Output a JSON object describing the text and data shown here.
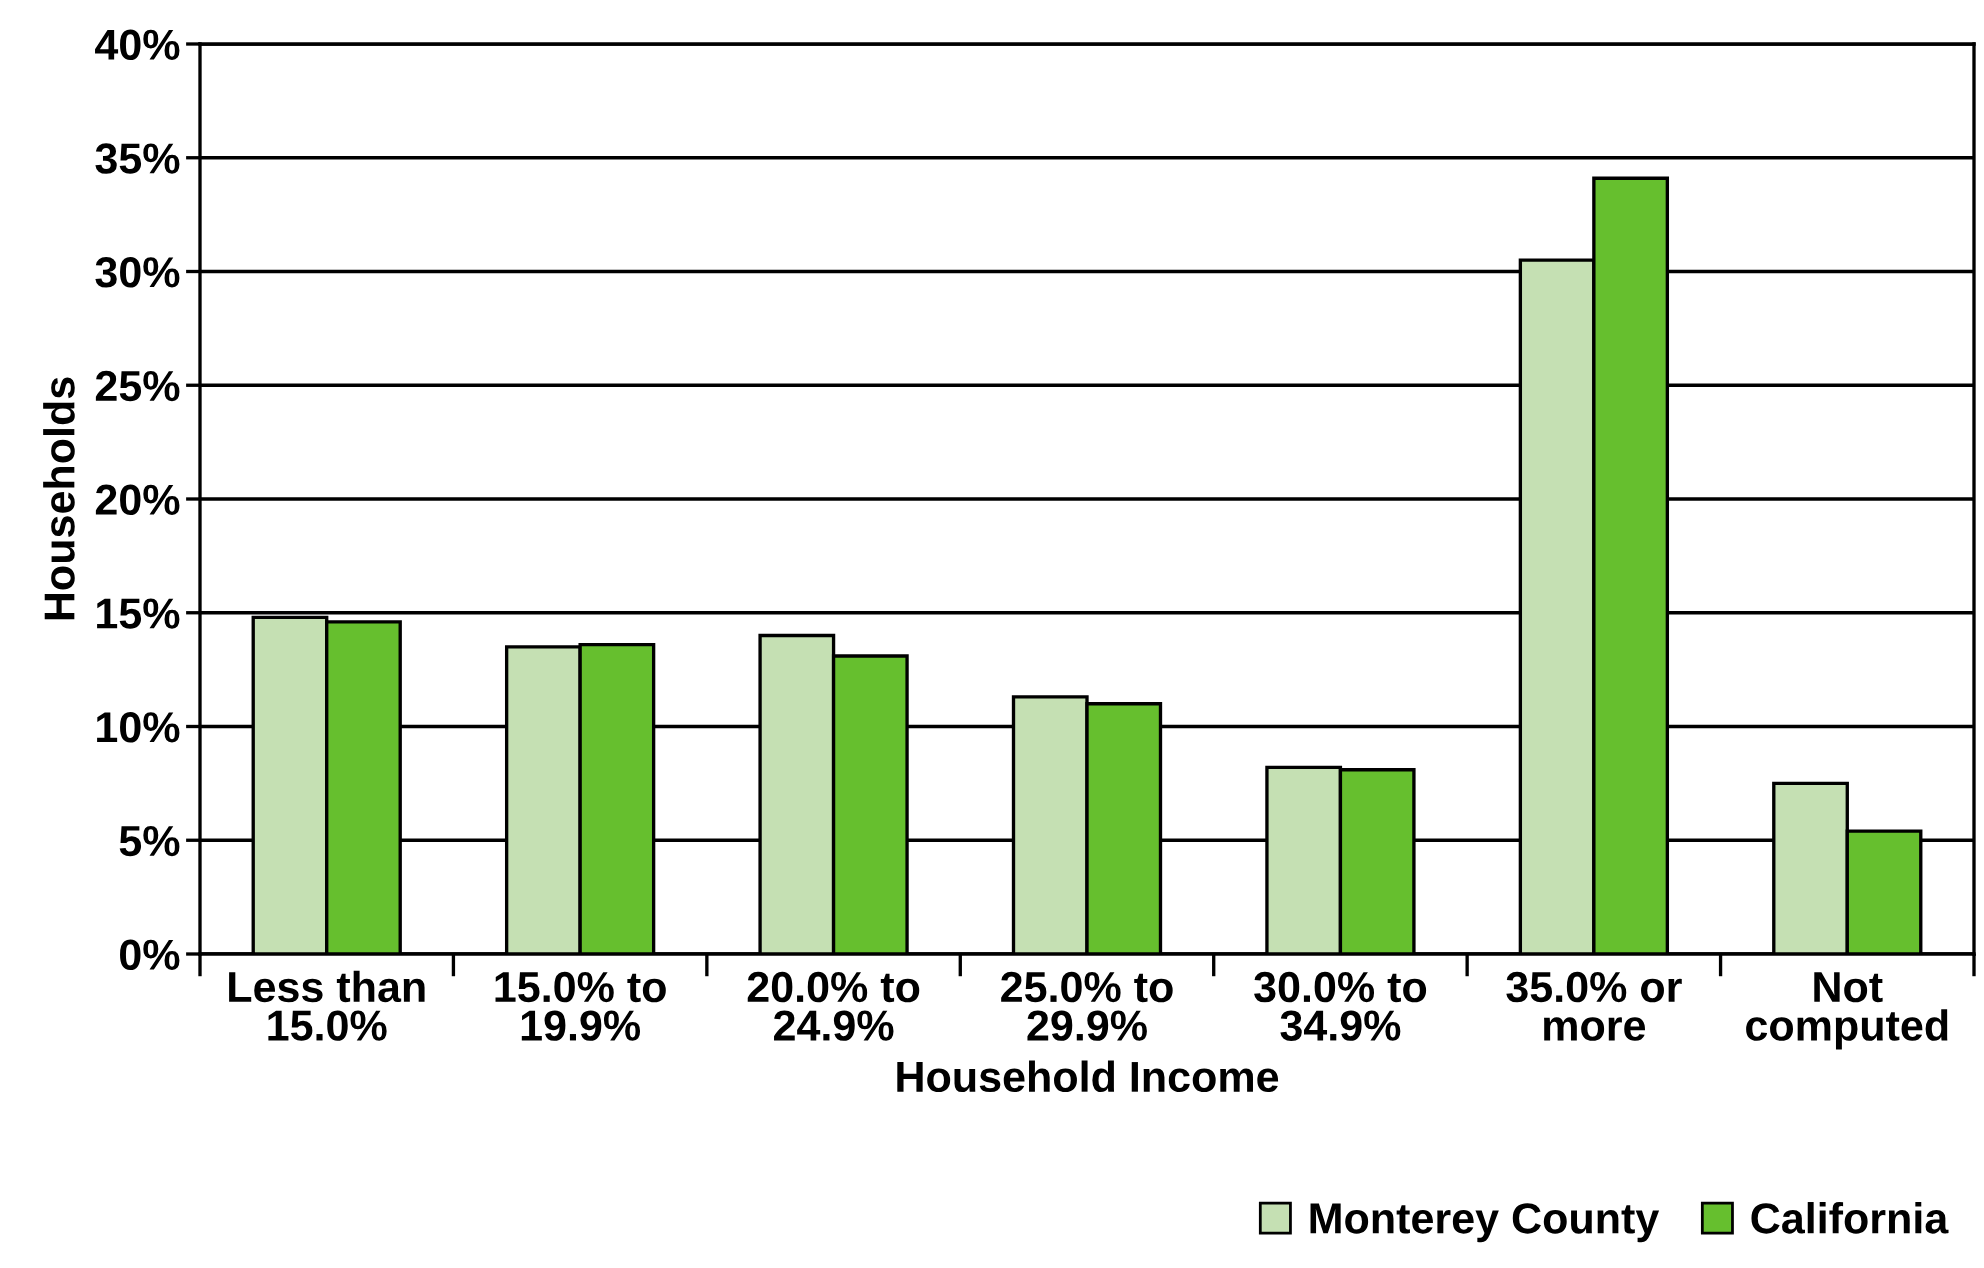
{
  "chart_data": {
    "type": "bar",
    "xlabel": "Household Income",
    "ylabel": "Households",
    "categories": [
      "Less than\n15.0%",
      "15.0% to\n19.9%",
      "20.0% to\n24.9%",
      "25.0% to\n29.9%",
      "30.0% to\n34.9%",
      "35.0% or\nmore",
      "Not\ncomputed"
    ],
    "series": [
      {
        "name": "Monterey County",
        "color": "#c5e0b3",
        "values": [
          14.8,
          13.5,
          14.0,
          11.3,
          8.2,
          30.5,
          7.5
        ]
      },
      {
        "name": "California",
        "color": "#66bf2e",
        "values": [
          14.6,
          13.6,
          13.1,
          11.0,
          8.1,
          34.1,
          5.4
        ]
      }
    ],
    "ylim": [
      0,
      40
    ],
    "yticks": [
      {
        "value": 0,
        "label": "0%"
      },
      {
        "value": 5,
        "label": "5%"
      },
      {
        "value": 10,
        "label": "10%"
      },
      {
        "value": 15,
        "label": "15%"
      },
      {
        "value": 20,
        "label": "20%"
      },
      {
        "value": 25,
        "label": "25%"
      },
      {
        "value": 30,
        "label": "30%"
      },
      {
        "value": 35,
        "label": "35%"
      },
      {
        "value": 40,
        "label": "40%"
      }
    ],
    "grid": "y",
    "legend": "bottom right"
  }
}
